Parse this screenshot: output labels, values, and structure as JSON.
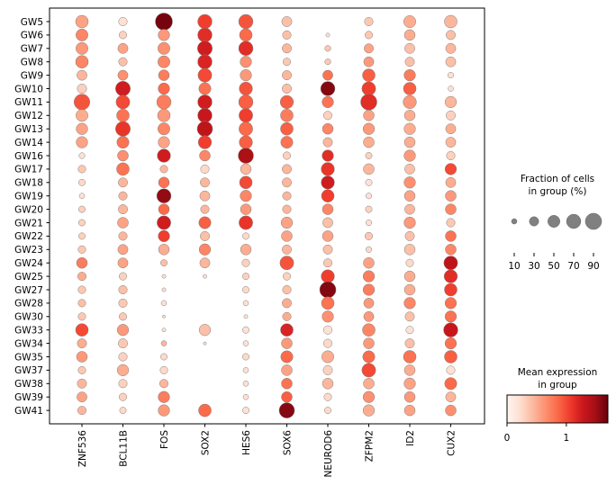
{
  "chart_data": {
    "type": "scatter",
    "subtype": "dotplot",
    "title": "",
    "xlabel": "",
    "ylabel": "",
    "genes": [
      "ZNF536",
      "BCL11B",
      "FOS",
      "SOX2",
      "HES6",
      "SOX6",
      "NEUROD6",
      "ZFPM2",
      "ID2",
      "CUX2"
    ],
    "groups": [
      "GW5",
      "GW6",
      "GW7",
      "GW8",
      "GW9",
      "GW10",
      "GW11",
      "GW12",
      "GW13",
      "GW14",
      "GW16",
      "GW17",
      "GW18",
      "GW19",
      "GW20",
      "GW21",
      "GW22",
      "GW23",
      "GW24",
      "GW25",
      "GW27",
      "GW28",
      "GW30",
      "GW33",
      "GW34",
      "GW35",
      "GW37",
      "GW38",
      "GW39",
      "GW41"
    ],
    "fraction_pct": [
      [
        55,
        25,
        100,
        70,
        70,
        35,
        0,
        25,
        50,
        55
      ],
      [
        50,
        20,
        45,
        70,
        55,
        25,
        5,
        20,
        40,
        30
      ],
      [
        50,
        35,
        50,
        75,
        70,
        30,
        12,
        30,
        35,
        35
      ],
      [
        55,
        25,
        50,
        70,
        45,
        20,
        12,
        35,
        30,
        35
      ],
      [
        35,
        35,
        40,
        65,
        45,
        30,
        35,
        55,
        45,
        12
      ],
      [
        30,
        75,
        45,
        50,
        60,
        30,
        70,
        65,
        55,
        10
      ],
      [
        85,
        65,
        70,
        70,
        70,
        60,
        45,
        90,
        60,
        45
      ],
      [
        50,
        55,
        55,
        70,
        65,
        55,
        25,
        40,
        40,
        30
      ],
      [
        45,
        75,
        50,
        80,
        65,
        55,
        40,
        45,
        45,
        35
      ],
      [
        45,
        50,
        45,
        60,
        60,
        50,
        30,
        40,
        40,
        35
      ],
      [
        12,
        40,
        60,
        40,
        80,
        20,
        45,
        15,
        45,
        25
      ],
      [
        20,
        55,
        20,
        25,
        40,
        30,
        60,
        40,
        35,
        45
      ],
      [
        15,
        30,
        40,
        30,
        55,
        30,
        60,
        15,
        45,
        35
      ],
      [
        10,
        25,
        70,
        35,
        45,
        25,
        55,
        12,
        40,
        40
      ],
      [
        15,
        30,
        40,
        25,
        40,
        25,
        40,
        15,
        35,
        40
      ],
      [
        15,
        40,
        65,
        50,
        65,
        45,
        35,
        12,
        45,
        25
      ],
      [
        15,
        25,
        45,
        30,
        15,
        40,
        40,
        20,
        30,
        40
      ],
      [
        20,
        35,
        40,
        45,
        40,
        30,
        30,
        12,
        40,
        40
      ],
      [
        40,
        35,
        15,
        35,
        20,
        65,
        25,
        40,
        20,
        65
      ],
      [
        25,
        20,
        5,
        5,
        15,
        20,
        60,
        45,
        40,
        60
      ],
      [
        20,
        25,
        5,
        0,
        15,
        25,
        90,
        45,
        40,
        55
      ],
      [
        20,
        25,
        10,
        0,
        10,
        30,
        55,
        35,
        45,
        45
      ],
      [
        20,
        20,
        3,
        0,
        5,
        25,
        45,
        35,
        30,
        45
      ],
      [
        55,
        45,
        5,
        45,
        15,
        55,
        25,
        55,
        20,
        70
      ],
      [
        30,
        30,
        10,
        3,
        10,
        40,
        25,
        40,
        30,
        45
      ],
      [
        40,
        25,
        15,
        0,
        15,
        50,
        50,
        50,
        55,
        55
      ],
      [
        20,
        45,
        20,
        0,
        10,
        40,
        30,
        65,
        40,
        25
      ],
      [
        30,
        25,
        25,
        0,
        10,
        40,
        40,
        40,
        45,
        50
      ],
      [
        35,
        20,
        45,
        0,
        10,
        40,
        20,
        45,
        40,
        35
      ],
      [
        25,
        15,
        45,
        55,
        15,
        80,
        15,
        45,
        40,
        40
      ]
    ],
    "mean_expression": [
      [
        0.55,
        0.2,
        1.65,
        1.05,
        0.95,
        0.4,
        0.0,
        0.35,
        0.5,
        0.45
      ],
      [
        0.7,
        0.3,
        0.6,
        1.15,
        0.85,
        0.4,
        0.2,
        0.35,
        0.5,
        0.4
      ],
      [
        0.6,
        0.55,
        0.65,
        1.25,
        1.15,
        0.45,
        0.35,
        0.55,
        0.4,
        0.45
      ],
      [
        0.7,
        0.4,
        0.7,
        1.2,
        0.65,
        0.35,
        0.35,
        0.6,
        0.4,
        0.4
      ],
      [
        0.45,
        0.65,
        0.75,
        1.0,
        0.6,
        0.45,
        0.8,
        0.9,
        0.75,
        0.2
      ],
      [
        0.3,
        1.25,
        0.85,
        0.8,
        0.95,
        0.4,
        1.6,
        1.05,
        0.9,
        0.2
      ],
      [
        0.95,
        1.0,
        0.75,
        1.25,
        0.9,
        0.9,
        0.8,
        1.15,
        0.6,
        0.45
      ],
      [
        0.5,
        0.8,
        0.6,
        1.3,
        1.05,
        0.75,
        0.3,
        0.55,
        0.5,
        0.3
      ],
      [
        0.55,
        1.1,
        0.7,
        1.35,
        0.85,
        0.9,
        0.7,
        0.6,
        0.5,
        0.5
      ],
      [
        0.55,
        0.8,
        0.55,
        1.05,
        0.9,
        0.8,
        0.45,
        0.5,
        0.5,
        0.45
      ],
      [
        0.2,
        0.65,
        1.25,
        0.7,
        1.45,
        0.3,
        1.15,
        0.3,
        0.6,
        0.3
      ],
      [
        0.35,
        0.8,
        0.45,
        0.25,
        0.45,
        0.45,
        1.1,
        0.45,
        0.4,
        1.0
      ],
      [
        0.25,
        0.45,
        0.8,
        0.45,
        1.0,
        0.45,
        1.25,
        0.2,
        0.65,
        0.5
      ],
      [
        0.2,
        0.45,
        1.55,
        0.45,
        0.7,
        0.45,
        1.05,
        0.2,
        0.55,
        0.6
      ],
      [
        0.3,
        0.45,
        0.85,
        0.45,
        0.6,
        0.45,
        0.7,
        0.3,
        0.45,
        0.7
      ],
      [
        0.3,
        0.55,
        1.25,
        0.9,
        1.1,
        0.55,
        0.4,
        0.2,
        0.6,
        0.35
      ],
      [
        0.3,
        0.45,
        1.05,
        0.4,
        0.25,
        0.55,
        0.55,
        0.35,
        0.4,
        0.8
      ],
      [
        0.35,
        0.55,
        0.5,
        0.7,
        0.5,
        0.45,
        0.4,
        0.25,
        0.4,
        0.7
      ],
      [
        0.75,
        0.55,
        0.4,
        0.45,
        0.3,
        0.95,
        0.35,
        0.55,
        0.25,
        1.35
      ],
      [
        0.5,
        0.3,
        0.2,
        0.2,
        0.3,
        0.3,
        1.05,
        0.75,
        0.5,
        1.15
      ],
      [
        0.35,
        0.4,
        0.2,
        0.0,
        0.25,
        0.4,
        1.6,
        0.75,
        0.5,
        1.05
      ],
      [
        0.4,
        0.35,
        0.2,
        0.0,
        0.2,
        0.5,
        0.8,
        0.6,
        0.7,
        0.8
      ],
      [
        0.35,
        0.35,
        0.2,
        0.0,
        0.2,
        0.5,
        0.65,
        0.6,
        0.4,
        0.8
      ],
      [
        1.0,
        0.6,
        0.2,
        0.4,
        0.2,
        1.2,
        0.2,
        0.7,
        0.2,
        1.3
      ],
      [
        0.5,
        0.35,
        0.45,
        0.2,
        0.2,
        0.6,
        0.25,
        0.6,
        0.4,
        0.8
      ],
      [
        0.6,
        0.3,
        0.25,
        0.0,
        0.25,
        0.85,
        0.5,
        0.85,
        0.8,
        0.9
      ],
      [
        0.35,
        0.5,
        0.25,
        0.0,
        0.2,
        0.55,
        0.3,
        1.0,
        0.5,
        0.2
      ],
      [
        0.45,
        0.3,
        0.45,
        0.0,
        0.2,
        0.8,
        0.45,
        0.5,
        0.55,
        0.85
      ],
      [
        0.55,
        0.3,
        0.75,
        0.0,
        0.2,
        0.9,
        0.25,
        0.65,
        0.6,
        0.45
      ],
      [
        0.45,
        0.25,
        0.6,
        0.85,
        0.2,
        1.6,
        0.25,
        0.5,
        0.55,
        0.65
      ]
    ],
    "size_legend": {
      "title_line1": "Fraction of cells",
      "title_line2": "in group (%)",
      "values": [
        10,
        30,
        50,
        70,
        90
      ],
      "labels": [
        "10",
        "30",
        "50",
        "70",
        "90"
      ]
    },
    "color_legend": {
      "title_line1": "Mean expression",
      "title_line2": "in group",
      "range": [
        0,
        1.7
      ],
      "ticks": [
        0,
        1
      ],
      "labels": [
        "0",
        "1"
      ],
      "colormap": "Reds",
      "colormap_stops": [
        "#fff5f0",
        "#fee0d2",
        "#fcbba1",
        "#fc9272",
        "#fb6a4a",
        "#ef3b2c",
        "#cb181d",
        "#a50f15",
        "#67000d"
      ]
    },
    "dot_edge_color": "#808080",
    "size_legend_color": "#808080"
  }
}
